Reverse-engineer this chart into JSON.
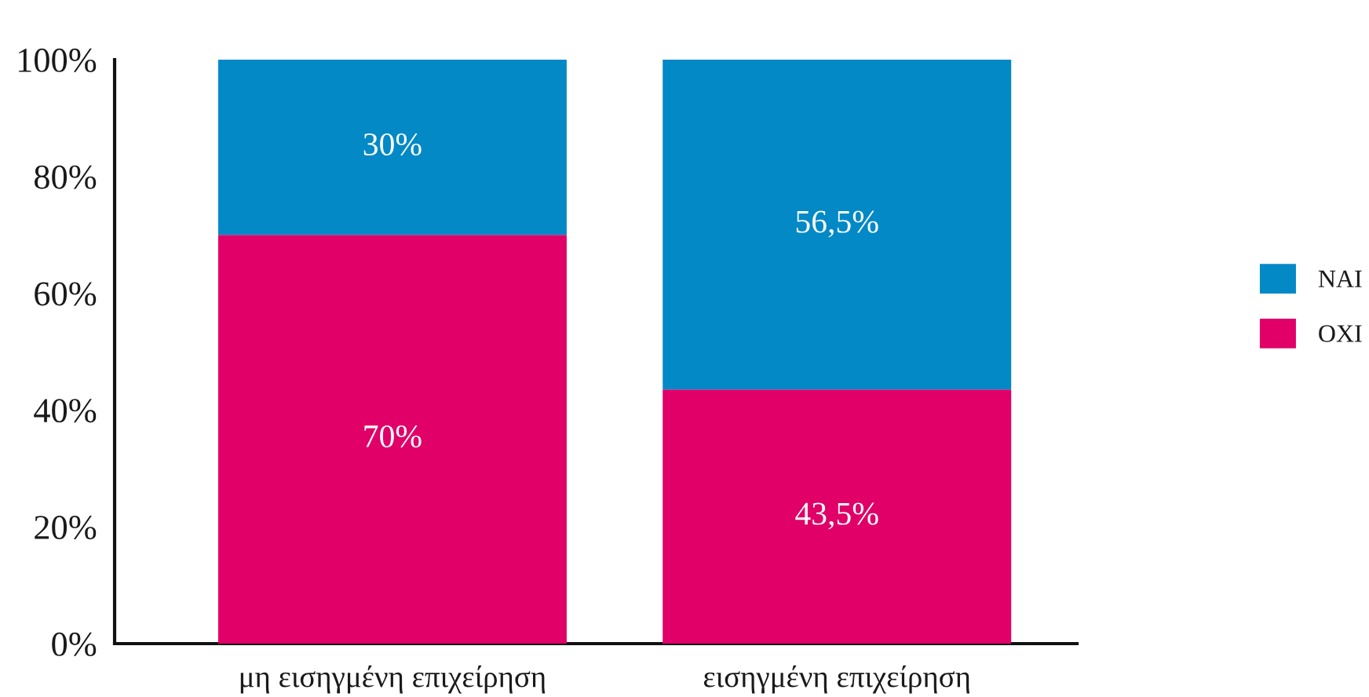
{
  "chart_data": {
    "type": "bar",
    "stacked": true,
    "categories": [
      "μη εισηγμένη επιχείρηση",
      "εισηγμένη επιχείρηση"
    ],
    "series": [
      {
        "name": "ΟΧΙ",
        "color": "#e00068",
        "values": [
          70,
          43.5
        ],
        "value_labels": [
          "70%",
          "43,5%"
        ]
      },
      {
        "name": "ΝΑΙ",
        "color": "#0289c6",
        "values": [
          30,
          56.5
        ],
        "value_labels": [
          "30%",
          "56,5%"
        ]
      }
    ],
    "ylim": [
      0,
      100
    ],
    "yticks": [
      {
        "value": 0,
        "label": "0%"
      },
      {
        "value": 20,
        "label": "20%"
      },
      {
        "value": 40,
        "label": "40%"
      },
      {
        "value": 60,
        "label": "60%"
      },
      {
        "value": 80,
        "label": "80%"
      },
      {
        "value": 100,
        "label": "100%"
      }
    ],
    "legend": "right"
  }
}
